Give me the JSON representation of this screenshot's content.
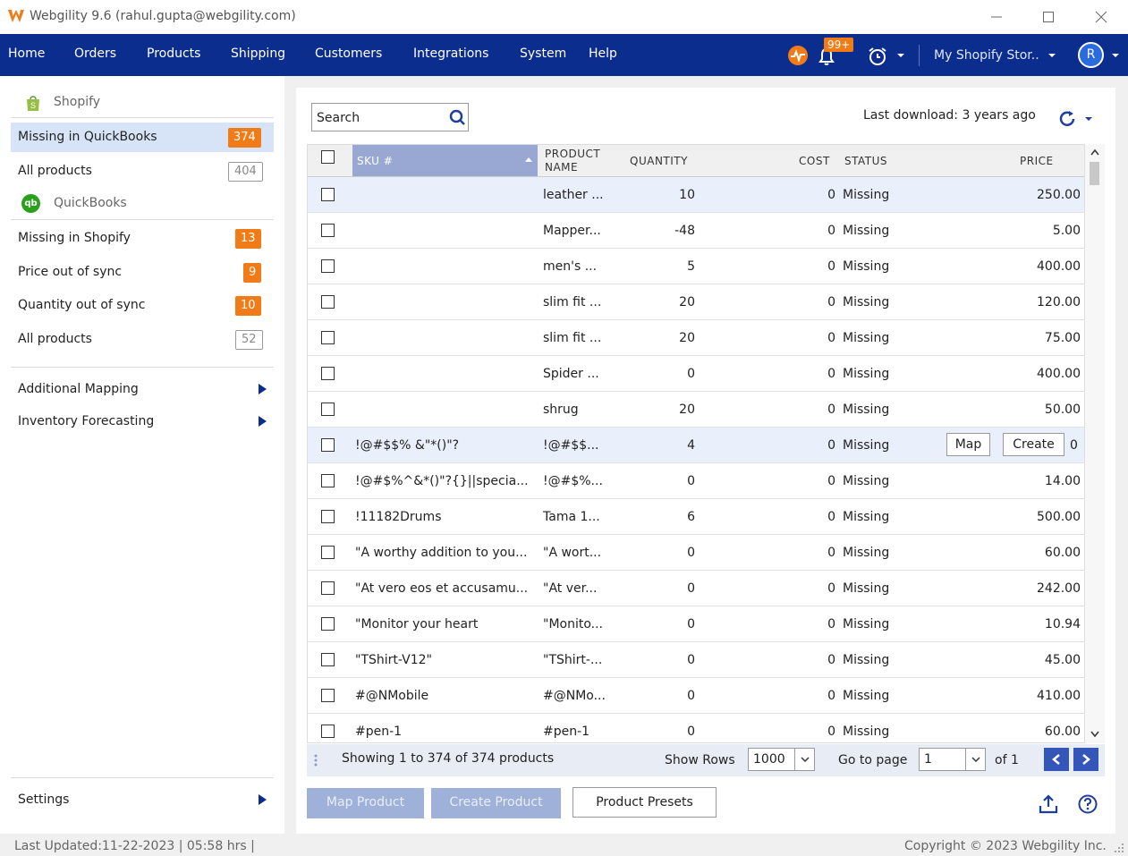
{
  "window": {
    "title": "Webgility 9.6 (rahul.gupta@webgility.com)"
  },
  "nav": {
    "items": [
      "Home",
      "Orders",
      "Products",
      "Shipping",
      "Customers",
      "Integrations",
      "System",
      "Help"
    ],
    "notif_badge": "99+",
    "store": "My Shopify Stor..",
    "avatar": "R"
  },
  "sidebar": {
    "shopify_header": "Shopify",
    "qb_header": "QuickBooks",
    "shopify_items": [
      {
        "label": "Missing in QuickBooks",
        "count": "374"
      },
      {
        "label": "All products",
        "count": "404"
      }
    ],
    "qb_items": [
      {
        "label": "Missing in Shopify",
        "count": "13"
      },
      {
        "label": "Price out of sync",
        "count": "9"
      },
      {
        "label": "Quantity out of sync",
        "count": "10"
      },
      {
        "label": "All products",
        "count": "52"
      }
    ],
    "extra": [
      "Additional Mapping",
      "Inventory Forecasting"
    ],
    "settings": "Settings"
  },
  "toolbar": {
    "search_placeholder": "Search",
    "last_download": "Last download: 3 years ago"
  },
  "table": {
    "headers": {
      "sku": "SKU #",
      "product_name_1": "PRODUCT",
      "product_name_2": "NAME",
      "quantity": "QUANTITY",
      "cost": "COST",
      "status": "STATUS",
      "price": "PRICE"
    },
    "rows": [
      {
        "sku": "",
        "name": "leather ...",
        "qty": "10",
        "cost": "0",
        "status": "Missing",
        "price": "250.00"
      },
      {
        "sku": "",
        "name": "Mapper...",
        "qty": "-48",
        "cost": "0",
        "status": "Missing",
        "price": "5.00"
      },
      {
        "sku": "",
        "name": "men's ...",
        "qty": "5",
        "cost": "0",
        "status": "Missing",
        "price": "400.00"
      },
      {
        "sku": "",
        "name": "slim fit ...",
        "qty": "20",
        "cost": "0",
        "status": "Missing",
        "price": "120.00"
      },
      {
        "sku": "",
        "name": "slim fit ...",
        "qty": "20",
        "cost": "0",
        "status": "Missing",
        "price": "75.00"
      },
      {
        "sku": "",
        "name": "Spider ...",
        "qty": "0",
        "cost": "0",
        "status": "Missing",
        "price": "400.00"
      },
      {
        "sku": "",
        "name": "shrug",
        "qty": "20",
        "cost": "0",
        "status": "Missing",
        "price": "50.00"
      },
      {
        "sku": "!@#$$% &\"*()\"?",
        "name": "!@#$$...",
        "qty": "4",
        "cost": "0",
        "status": "Missing",
        "price": "0"
      },
      {
        "sku": "!@#$%^&*()\"?{}||specia...",
        "name": "!@#$%...",
        "qty": "0",
        "cost": "0",
        "status": "Missing",
        "price": "14.00"
      },
      {
        "sku": "!11182Drums",
        "name": "Tama 1...",
        "qty": "6",
        "cost": "0",
        "status": "Missing",
        "price": "500.00"
      },
      {
        "sku": "\"A worthy addition to you...",
        "name": "\"A wort...",
        "qty": "0",
        "cost": "0",
        "status": "Missing",
        "price": "60.00"
      },
      {
        "sku": "\"At vero eos et accusamu...",
        "name": "\"At ver...",
        "qty": "0",
        "cost": "0",
        "status": "Missing",
        "price": "242.00"
      },
      {
        "sku": "\"Monitor your heart",
        "name": "\"Monito...",
        "qty": "0",
        "cost": "0",
        "status": "Missing",
        "price": "10.94"
      },
      {
        "sku": "\"TShirt-V12\"",
        "name": "\"TShirt-...",
        "qty": "0",
        "cost": "0",
        "status": "Missing",
        "price": "45.00"
      },
      {
        "sku": "#@NMobile",
        "name": "#@NMo...",
        "qty": "0",
        "cost": "0",
        "status": "Missing",
        "price": "410.00"
      },
      {
        "sku": "#pen-1",
        "name": "#pen-1",
        "qty": "0",
        "cost": "0",
        "status": "Missing",
        "price": "60.00"
      }
    ],
    "row_actions": {
      "map": "Map",
      "create": "Create"
    }
  },
  "pager": {
    "showing": "Showing 1 to 374 of 374 products",
    "show_rows_label": "Show Rows",
    "rows_value": "1000",
    "goto_label": "Go to page",
    "page_value": "1",
    "of_label": "of 1"
  },
  "actions": {
    "map_product": "Map Product",
    "create_product": "Create Product",
    "product_presets": "Product Presets"
  },
  "status": {
    "last_updated": "Last Updated:11-22-2023 | 05:58 hrs |",
    "copyright": "Copyright © 2023 Webgility Inc."
  },
  "colors": {
    "nav_bg": "#0b2d8d",
    "accent_orange": "#f07b17",
    "sort_header": "#98a8d2"
  }
}
